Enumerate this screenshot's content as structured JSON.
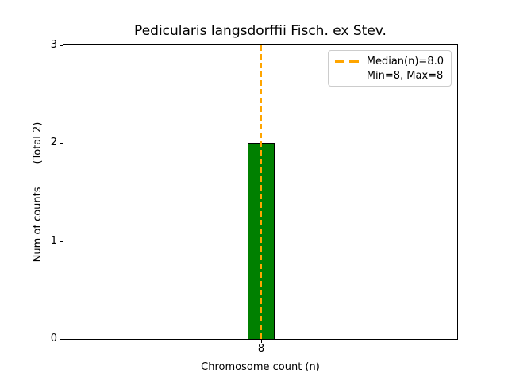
{
  "figure": {
    "title": "Pedicularis langsdorffii Fisch. ex Stev.",
    "xlabel": "Chromosome count (n)",
    "ylabel": "Num of counts       (Total 2)"
  },
  "axes": {
    "yticks": [
      "3",
      "2",
      "1",
      "0"
    ],
    "xticks": [
      "8"
    ]
  },
  "legend": {
    "items": [
      {
        "label": "Median(n)=8.0",
        "swatch": "orange-dashed-line"
      },
      {
        "label": "Min=8, Max=8",
        "swatch": "none"
      }
    ]
  },
  "colors": {
    "bar_fill": "#008000",
    "bar_edge": "#000000",
    "median_line": "#FFA500",
    "axis": "#000000",
    "legend_border": "#cccccc"
  },
  "chart_data": {
    "type": "bar",
    "title": "Pedicularis langsdorffii Fisch. ex Stev.",
    "xlabel": "Chromosome count (n)",
    "ylabel": "Num of counts (Total 2)",
    "categories": [
      "8"
    ],
    "values": [
      2
    ],
    "ylim": [
      0,
      3
    ],
    "yticks": [
      0,
      1,
      2,
      3
    ],
    "bar_color": "#008000",
    "bar_edgecolor": "#000000",
    "grid": false,
    "legend_position": "upper right",
    "annotations": [
      {
        "type": "vline",
        "x": 8,
        "linestyle": "dashed",
        "linewidth": 2,
        "color": "#FFA500",
        "label": "Median(n)=8.0"
      },
      {
        "type": "legend_text_only",
        "label": "Min=8, Max=8"
      }
    ],
    "stats": {
      "total_counts": 2,
      "median_n": 8.0,
      "min_n": 8,
      "max_n": 8
    }
  }
}
